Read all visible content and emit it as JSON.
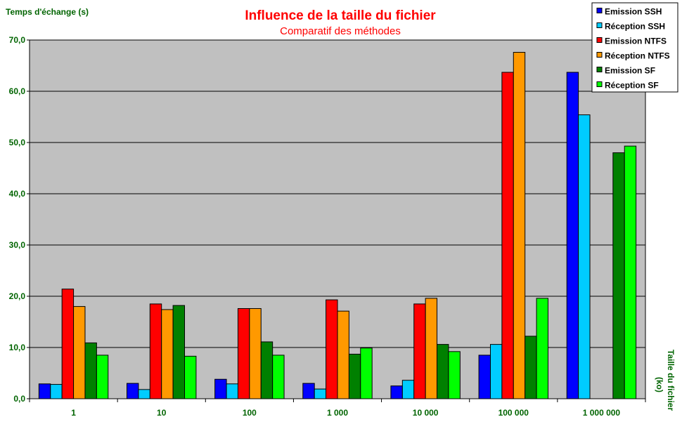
{
  "chart_data": {
    "type": "bar",
    "title": "Influence de la taille du fichier",
    "subtitle": "Comparatif des méthodes",
    "ylabel": "Temps d'échange (s)",
    "xlabel_line1": "Taille du fichier",
    "xlabel_line2": "(ko)",
    "categories": [
      "1",
      "10",
      "100",
      "1 000",
      "10 000",
      "100 000",
      "1 000 000"
    ],
    "ylim": [
      0,
      70
    ],
    "yticks": [
      0,
      10,
      20,
      30,
      40,
      50,
      60,
      70
    ],
    "ytick_labels": [
      "0,0",
      "10,0",
      "20,0",
      "30,0",
      "40,0",
      "50,0",
      "60,0",
      "70,0"
    ],
    "grid": true,
    "legend_position": "top-right",
    "plot_background": "#c0c0c0",
    "series": [
      {
        "name": "Emission SSH",
        "color": "#0000ff",
        "values": [
          2.9,
          3.0,
          3.8,
          3.0,
          2.5,
          8.5,
          63.7
        ]
      },
      {
        "name": "Réception SSH",
        "color": "#00ccff",
        "values": [
          2.8,
          1.8,
          2.9,
          1.9,
          3.6,
          10.6,
          55.4
        ]
      },
      {
        "name": "Emission NTFS",
        "color": "#ff0000",
        "values": [
          21.4,
          18.5,
          17.6,
          19.3,
          18.5,
          63.7,
          0
        ]
      },
      {
        "name": "Réception NTFS",
        "color": "#ff9900",
        "values": [
          18.0,
          17.4,
          17.6,
          17.1,
          19.6,
          67.6,
          0
        ]
      },
      {
        "name": "Emission SF",
        "color": "#008000",
        "values": [
          10.9,
          18.2,
          11.1,
          8.7,
          10.6,
          12.2,
          48.0
        ]
      },
      {
        "name": "Réception SF",
        "color": "#00ff00",
        "values": [
          8.5,
          8.3,
          8.5,
          9.9,
          9.2,
          19.6,
          49.3
        ]
      }
    ]
  }
}
